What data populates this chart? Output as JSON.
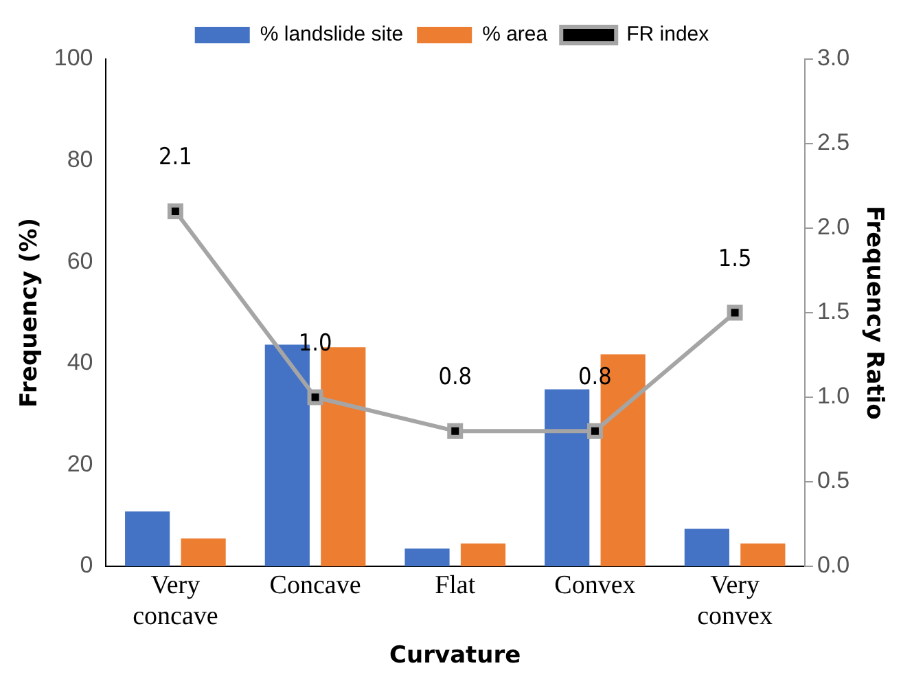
{
  "chart_data": {
    "type": "bar",
    "xlabel": "Curvature",
    "ylabel": "Frequency (%)",
    "y2label": "Frequency Ratio",
    "categories": [
      "Very concave",
      "Concave",
      "Flat",
      "Convex",
      "Very convex"
    ],
    "series": [
      {
        "name": "% landslide site",
        "color": "#4472c4",
        "values": [
          10.8,
          43.7,
          3.5,
          34.9,
          7.4
        ]
      },
      {
        "name": "% area",
        "color": "#ed7d31",
        "values": [
          5.5,
          43.2,
          4.5,
          41.8,
          4.5
        ]
      },
      {
        "name": "FR index",
        "type": "line",
        "axis": "y2",
        "color": "#a5a5a5",
        "marker": "square",
        "values": [
          2.1,
          1.0,
          0.8,
          0.8,
          1.5
        ],
        "value_labels": [
          "2.1",
          "1.0",
          "0.8",
          "0.8",
          "1.5"
        ]
      }
    ],
    "ylim": [
      0,
      100
    ],
    "yticks": [
      0,
      20,
      40,
      60,
      80,
      100
    ],
    "y2lim": [
      0,
      3
    ],
    "y2ticks": [
      {
        "value": 0,
        "label": "0.0"
      },
      {
        "value": 0.5,
        "label": "0.5"
      },
      {
        "value": 1,
        "label": "1.0"
      },
      {
        "value": 1.5,
        "label": "1.5"
      },
      {
        "value": 2,
        "label": "2.0"
      },
      {
        "value": 2.5,
        "label": "2.5"
      },
      {
        "value": 3,
        "label": "3.0"
      }
    ],
    "legend": "top",
    "grid": false
  }
}
